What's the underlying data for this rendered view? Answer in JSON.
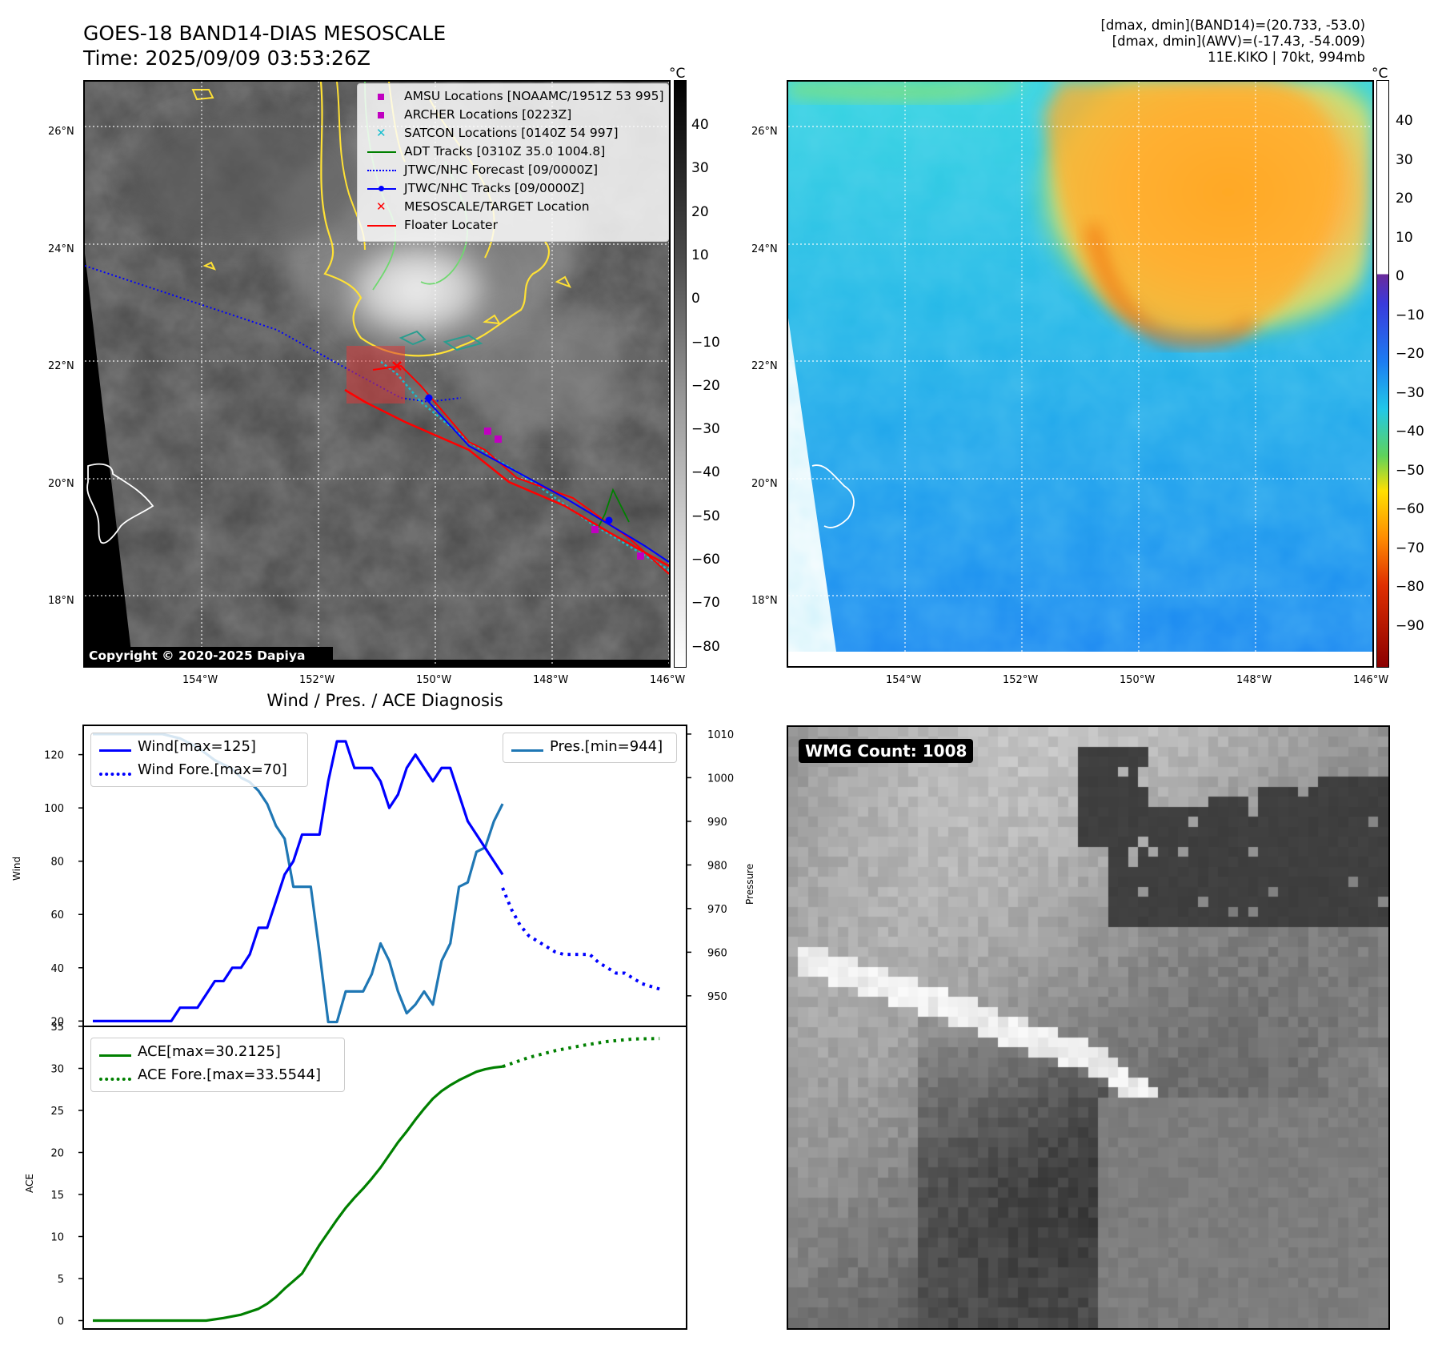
{
  "header": {
    "title_line1": "GOES-18 BAND14-DIAS MESOSCALE",
    "title_line2": "Time: 2025/09/09 03:53:26Z",
    "stats_line1": "[dmax, dmin](BAND14)=(20.733, -53.0)",
    "stats_line2": "[dmax, dmin](AWV)=(-17.43, -54.009)",
    "stats_line3": "11E.KIKO | 70kt, 994mb"
  },
  "map_axes": {
    "lat_labels": [
      "26°N",
      "24°N",
      "22°N",
      "20°N",
      "18°N"
    ],
    "lon_labels": [
      "154°W",
      "152°W",
      "150°W",
      "148°W",
      "146°W"
    ]
  },
  "ir_panel": {
    "colorbar_unit": "°C",
    "colorbar_ticks": [
      "40",
      "30",
      "20",
      "10",
      "0",
      "−10",
      "−20",
      "−30",
      "−40",
      "−50",
      "−60",
      "−70",
      "−80"
    ],
    "copyright": "Copyright © 2020-2025 Dapiya",
    "legend": [
      {
        "label": "AMSU Locations [NOAAMC/1951Z 53 995]",
        "color": "#c000c0",
        "icon": "square-marker"
      },
      {
        "label": "ARCHER Locations [0223Z]",
        "color": "#c000c0",
        "icon": "square-marker"
      },
      {
        "label": "SATCON Locations [0140Z 54 997]",
        "color": "#17becf",
        "icon": "x-marker"
      },
      {
        "label": "ADT Tracks [0310Z 35.0 1004.8]",
        "color": "#008000",
        "icon": "solid-line"
      },
      {
        "label": "JTWC/NHC Forecast [09/0000Z]",
        "color": "#0000ff",
        "icon": "dotted-line"
      },
      {
        "label": "JTWC/NHC Tracks [09/0000Z]",
        "color": "#0000ff",
        "icon": "line-dot"
      },
      {
        "label": "MESOSCALE/TARGET Location",
        "color": "#ff0000",
        "icon": "x-marker"
      },
      {
        "label": "Floater Locater",
        "color": "#ff0000",
        "icon": "solid-line"
      }
    ]
  },
  "awv_panel": {
    "colorbar_unit": "°C",
    "colorbar_ticks": [
      "40",
      "30",
      "20",
      "10",
      "0",
      "−10",
      "−20",
      "−30",
      "−40",
      "−50",
      "−60",
      "−70",
      "−80",
      "−90"
    ]
  },
  "diag_panel": {
    "title": "Wind / Pres. / ACE Diagnosis",
    "wind_ylabel": "Wind",
    "pres_ylabel": "Pressure",
    "ace_ylabel": "ACE",
    "legend_wind": "Wind[max=125]",
    "legend_wind_fore": "Wind Fore.[max=70]",
    "legend_pres": "Pres.[min=944]",
    "legend_ace": "ACE[max=30.2125]",
    "legend_ace_fore": "ACE Fore.[max=33.5544]"
  },
  "wmg_panel": {
    "badge": "WMG Count: 1008"
  },
  "chart_data": [
    {
      "type": "line",
      "title": "Wind / Pres. / ACE Diagnosis",
      "ylabel": "Wind",
      "ylim": [
        18,
        131
      ],
      "yticks": [
        20,
        40,
        60,
        80,
        100,
        120
      ],
      "series": [
        {
          "name": "Wind[max=125]",
          "color": "#0000ff",
          "style": "solid",
          "x": [
            0,
            1,
            2,
            3,
            4,
            5,
            6,
            7,
            8,
            9,
            10,
            11,
            12,
            13,
            14,
            15,
            16,
            17,
            18,
            19,
            20,
            21,
            22,
            23,
            24,
            25,
            26,
            27,
            28,
            29,
            30,
            31,
            32,
            33,
            34,
            35,
            36,
            37,
            38,
            39,
            40,
            41,
            42,
            43,
            44,
            45,
            46,
            47
          ],
          "values": [
            20,
            20,
            20,
            20,
            20,
            20,
            20,
            20,
            20,
            20,
            25,
            25,
            25,
            30,
            35,
            35,
            40,
            40,
            45,
            55,
            55,
            65,
            75,
            80,
            90,
            90,
            90,
            110,
            125,
            125,
            115,
            115,
            115,
            110,
            100,
            105,
            115,
            120,
            115,
            110,
            115,
            115,
            105,
            95,
            90,
            85,
            80,
            75
          ]
        },
        {
          "name": "Wind Fore.[max=70]",
          "color": "#0000ff",
          "style": "dotted",
          "x": [
            47,
            48,
            49,
            50,
            51,
            52,
            53,
            54,
            55,
            56,
            57,
            58,
            59,
            60,
            61,
            62,
            63,
            64,
            65
          ],
          "values": [
            70,
            62,
            56,
            52,
            50,
            48,
            46,
            45,
            45,
            45,
            45,
            42,
            40,
            38,
            38,
            36,
            34,
            33,
            32
          ]
        }
      ]
    },
    {
      "type": "line",
      "ylabel": "Pressure",
      "ylim": [
        943,
        1012
      ],
      "yticks": [
        950,
        960,
        970,
        980,
        990,
        1000,
        1010
      ],
      "series": [
        {
          "name": "Pres.[min=944]",
          "color": "#1f77b4",
          "style": "solid",
          "x": [
            0,
            2,
            4,
            6,
            8,
            10,
            12,
            14,
            16,
            17,
            18,
            19,
            20,
            21,
            22,
            23,
            24,
            25,
            26,
            27,
            28,
            29,
            30,
            31,
            32,
            33,
            34,
            35,
            36,
            37,
            38,
            39,
            40,
            41,
            42,
            43,
            44,
            45,
            46,
            47
          ],
          "values": [
            1010,
            1010,
            1010,
            1010,
            1010,
            1009,
            1007,
            1004,
            1002,
            1000,
            999,
            997,
            994,
            989,
            986,
            975,
            975,
            975,
            960,
            944,
            944,
            951,
            951,
            951,
            955,
            962,
            958,
            951,
            946,
            948,
            951,
            948,
            958,
            962,
            975,
            976,
            983,
            984,
            990,
            994
          ]
        }
      ]
    },
    {
      "type": "line",
      "ylabel": "ACE",
      "ylim": [
        -1,
        35
      ],
      "yticks": [
        0,
        5,
        10,
        15,
        20,
        25,
        30,
        35
      ],
      "series": [
        {
          "name": "ACE[max=30.2125]",
          "color": "#008000",
          "style": "solid",
          "x": [
            0,
            5,
            10,
            13,
            15,
            17,
            19,
            20,
            21,
            22,
            23,
            24,
            25,
            26,
            27,
            28,
            29,
            30,
            31,
            32,
            33,
            34,
            35,
            36,
            37,
            38,
            39,
            40,
            41,
            42,
            43,
            44,
            45,
            46,
            47
          ],
          "values": [
            0,
            0,
            0,
            0,
            0.3,
            0.7,
            1.4,
            2.0,
            2.8,
            3.8,
            4.7,
            5.6,
            7.3,
            9.0,
            10.5,
            12.0,
            13.4,
            14.6,
            15.7,
            16.9,
            18.2,
            19.7,
            21.2,
            22.5,
            23.9,
            25.2,
            26.4,
            27.3,
            28.0,
            28.6,
            29.1,
            29.6,
            29.9,
            30.1,
            30.2125
          ]
        },
        {
          "name": "ACE Fore.[max=33.5544]",
          "color": "#008000",
          "style": "dotted",
          "x": [
            47,
            50,
            53,
            56,
            59,
            62,
            65
          ],
          "values": [
            30.2125,
            31.3,
            32.1,
            32.7,
            33.2,
            33.5,
            33.5544
          ]
        }
      ]
    }
  ]
}
